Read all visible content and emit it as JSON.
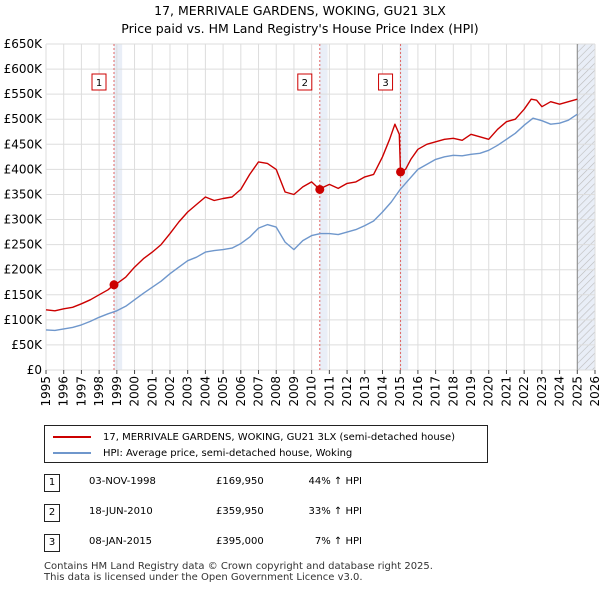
{
  "chart_data": {
    "type": "line",
    "title": "17, MERRIVALE GARDENS, WOKING, GU21 3LX",
    "subtitle": "Price paid vs. HM Land Registry's House Price Index (HPI)",
    "xlim": [
      1995,
      2026
    ],
    "ylim": [
      0,
      650000
    ],
    "y_ticks": [
      0,
      50000,
      100000,
      150000,
      200000,
      250000,
      300000,
      350000,
      400000,
      450000,
      500000,
      550000,
      600000,
      650000
    ],
    "y_tick_labels": [
      "£0",
      "£50K",
      "£100K",
      "£150K",
      "£200K",
      "£250K",
      "£300K",
      "£350K",
      "£400K",
      "£450K",
      "£500K",
      "£550K",
      "£600K",
      "£650K"
    ],
    "x_ticks": [
      1995,
      1996,
      1997,
      1998,
      1999,
      2000,
      2001,
      2002,
      2003,
      2004,
      2005,
      2006,
      2007,
      2008,
      2009,
      2010,
      2011,
      2012,
      2013,
      2014,
      2015,
      2016,
      2017,
      2018,
      2019,
      2020,
      2021,
      2022,
      2023,
      2024,
      2025,
      2026
    ],
    "x_tick_labels": [
      "1995",
      "1996",
      "1997",
      "1998",
      "1999",
      "2000",
      "2001",
      "2002",
      "2003",
      "2004",
      "2005",
      "2006",
      "2007",
      "2008",
      "2009",
      "2010",
      "2011",
      "2012",
      "2013",
      "2014",
      "2015",
      "2016",
      "2017",
      "2018",
      "2019",
      "2020",
      "2021",
      "2022",
      "2023",
      "2024",
      "2025",
      "2026"
    ],
    "grid": true,
    "shaded_ranges": [
      [
        1998.84,
        1999.3
      ],
      [
        2010.46,
        2010.9
      ],
      [
        2015.02,
        2015.45
      ],
      [
        2025.0,
        2026.0
      ]
    ],
    "hatched_range": [
      2025.0,
      2026.0
    ],
    "series": [
      {
        "name": "17, MERRIVALE GARDENS, WOKING, GU21 3LX (semi-detached house)",
        "color": "#cc0000",
        "x": [
          1995.0,
          1995.5,
          1996.0,
          1996.5,
          1997.0,
          1997.5,
          1998.0,
          1998.5,
          1998.84,
          1999.0,
          1999.5,
          2000.0,
          2000.5,
          2001.0,
          2001.5,
          2002.0,
          2002.5,
          2003.0,
          2003.5,
          2004.0,
          2004.5,
          2005.0,
          2005.5,
          2006.0,
          2006.5,
          2007.0,
          2007.5,
          2008.0,
          2008.5,
          2009.0,
          2009.5,
          2010.0,
          2010.46,
          2010.7,
          2011.0,
          2011.5,
          2012.0,
          2012.5,
          2013.0,
          2013.5,
          2014.0,
          2014.4,
          2014.7,
          2014.95,
          2015.02,
          2015.3,
          2015.6,
          2016.0,
          2016.5,
          2017.0,
          2017.5,
          2018.0,
          2018.5,
          2019.0,
          2019.5,
          2020.0,
          2020.5,
          2021.0,
          2021.5,
          2022.0,
          2022.4,
          2022.7,
          2023.0,
          2023.5,
          2024.0,
          2024.5,
          2025.0
        ],
        "values": [
          120000,
          118000,
          122000,
          125000,
          132000,
          140000,
          150000,
          160000,
          169950,
          172000,
          185000,
          205000,
          222000,
          235000,
          250000,
          272000,
          295000,
          315000,
          330000,
          345000,
          338000,
          342000,
          345000,
          360000,
          390000,
          415000,
          412000,
          400000,
          355000,
          350000,
          365000,
          375000,
          359950,
          365000,
          370000,
          362000,
          372000,
          375000,
          385000,
          390000,
          425000,
          460000,
          490000,
          470000,
          395000,
          400000,
          420000,
          440000,
          450000,
          455000,
          460000,
          462000,
          458000,
          470000,
          465000,
          460000,
          480000,
          495000,
          500000,
          520000,
          540000,
          538000,
          525000,
          535000,
          530000,
          535000,
          540000
        ]
      },
      {
        "name": "HPI: Average price, semi-detached house, Woking",
        "color": "#6f97cc",
        "x": [
          1995.0,
          1995.5,
          1996.0,
          1996.5,
          1997.0,
          1997.5,
          1998.0,
          1998.5,
          1999.0,
          1999.5,
          2000.0,
          2000.5,
          2001.0,
          2001.5,
          2002.0,
          2002.5,
          2003.0,
          2003.5,
          2004.0,
          2004.5,
          2005.0,
          2005.5,
          2006.0,
          2006.5,
          2007.0,
          2007.5,
          2008.0,
          2008.5,
          2009.0,
          2009.5,
          2010.0,
          2010.5,
          2011.0,
          2011.5,
          2012.0,
          2012.5,
          2013.0,
          2013.5,
          2014.0,
          2014.5,
          2015.0,
          2015.5,
          2016.0,
          2016.5,
          2017.0,
          2017.5,
          2018.0,
          2018.5,
          2019.0,
          2019.5,
          2020.0,
          2020.5,
          2021.0,
          2021.5,
          2022.0,
          2022.5,
          2023.0,
          2023.5,
          2024.0,
          2024.5,
          2025.0
        ],
        "values": [
          80000,
          79000,
          82000,
          85000,
          90000,
          97000,
          105000,
          112000,
          118000,
          127000,
          140000,
          153000,
          165000,
          177000,
          192000,
          205000,
          218000,
          225000,
          235000,
          238000,
          240000,
          243000,
          252000,
          265000,
          283000,
          290000,
          285000,
          255000,
          240000,
          258000,
          268000,
          272000,
          272000,
          270000,
          275000,
          280000,
          288000,
          297000,
          315000,
          335000,
          360000,
          380000,
          400000,
          410000,
          420000,
          425000,
          428000,
          427000,
          430000,
          432000,
          438000,
          448000,
          460000,
          472000,
          488000,
          502000,
          497000,
          490000,
          492000,
          498000,
          510000
        ]
      }
    ],
    "sale_points": [
      {
        "label": "1",
        "x": 1998.84,
        "value": 169950
      },
      {
        "label": "2",
        "x": 2010.46,
        "value": 359950
      },
      {
        "label": "3",
        "x": 2015.02,
        "value": 395000
      }
    ]
  },
  "legend": {
    "entries": [
      {
        "label": "17, MERRIVALE GARDENS, WOKING, GU21 3LX (semi-detached house)",
        "color": "#cc0000"
      },
      {
        "label": "HPI: Average price, semi-detached house, Woking",
        "color": "#6f97cc"
      }
    ]
  },
  "sales": [
    {
      "num": "1",
      "date": "03-NOV-1998",
      "price": "£169,950",
      "hpi": "44% ↑ HPI"
    },
    {
      "num": "2",
      "date": "18-JUN-2010",
      "price": "£359,950",
      "hpi": "33% ↑ HPI"
    },
    {
      "num": "3",
      "date": "08-JAN-2015",
      "price": "£395,000",
      "hpi": "7% ↑ HPI"
    }
  ],
  "footer": {
    "line1": "Contains HM Land Registry data © Crown copyright and database right 2025.",
    "line2": "This data is licensed under the Open Government Licence v3.0."
  }
}
